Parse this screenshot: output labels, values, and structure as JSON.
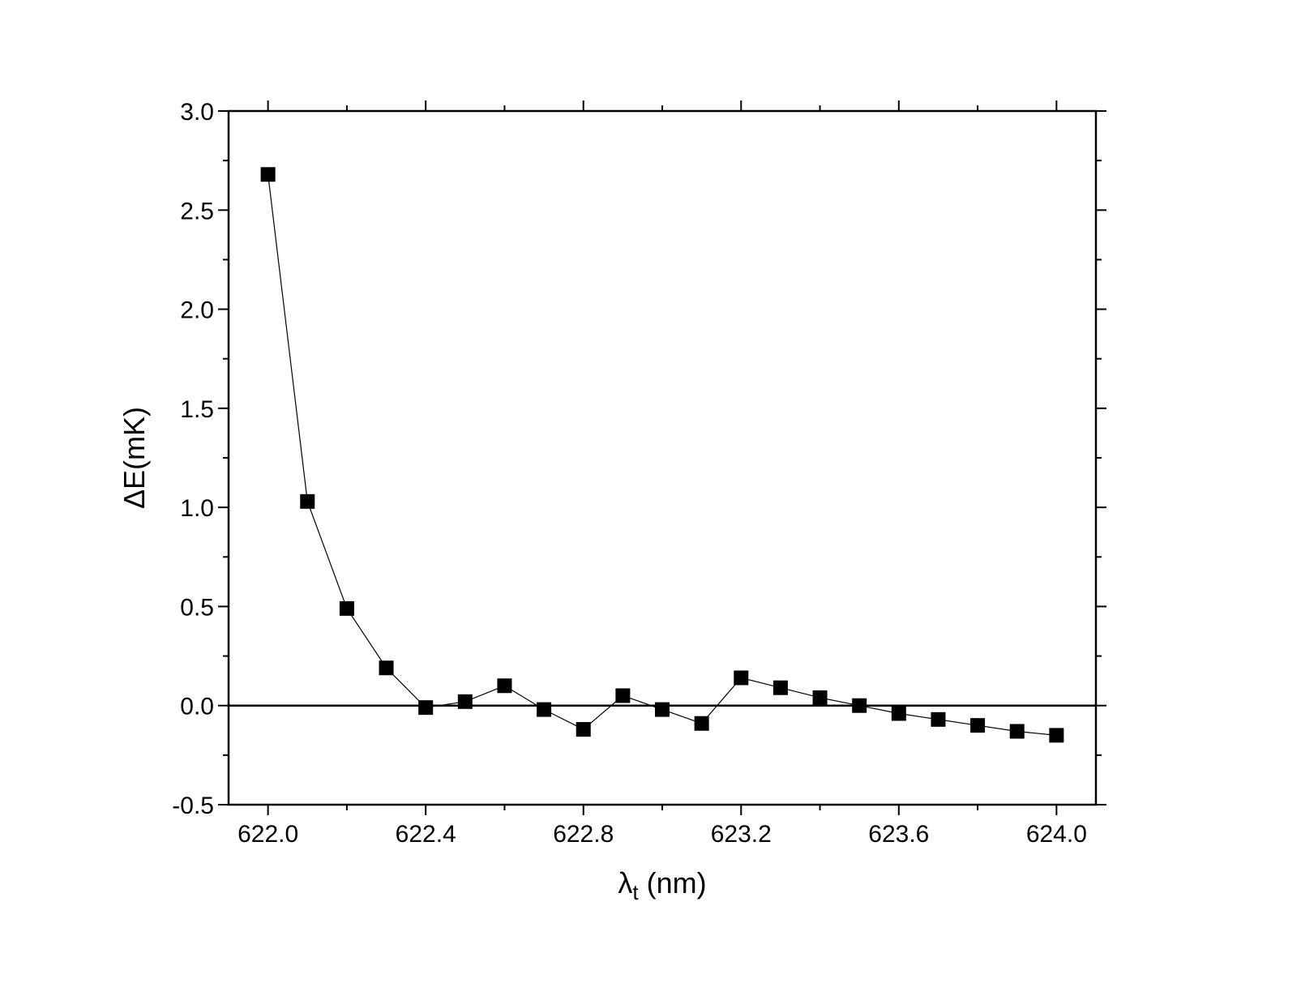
{
  "chart_data": {
    "type": "line",
    "title": "",
    "xlabel": "λt (nm)",
    "xlabel_main": "λ",
    "xlabel_sub": "t",
    "xlabel_rest": " (nm)",
    "ylabel": "ΔE(mK)",
    "xlim": [
      621.9,
      624.1
    ],
    "ylim": [
      -0.5,
      3.0
    ],
    "x_ticks": [
      "622.0",
      "622.4",
      "622.8",
      "623.2",
      "623.6",
      "624.0"
    ],
    "y_ticks": [
      "-0.5",
      "0.0",
      "0.5",
      "1.0",
      "1.5",
      "2.0",
      "2.5",
      "3.0"
    ],
    "reference_line_y": 0.0,
    "grid": false,
    "marker": "square",
    "color": "#000000",
    "series": [
      {
        "x": [
          622.0,
          622.1,
          622.2,
          622.3,
          622.4,
          622.5,
          622.6,
          622.7,
          622.8,
          622.9,
          623.0,
          623.1,
          623.2,
          623.3,
          623.4,
          623.5,
          623.6,
          623.7,
          623.8,
          623.9,
          624.0
        ],
        "values": [
          2.68,
          1.03,
          0.49,
          0.19,
          -0.01,
          0.02,
          0.1,
          -0.02,
          -0.12,
          0.05,
          -0.02,
          -0.09,
          0.14,
          0.09,
          0.04,
          0.0,
          -0.04,
          -0.07,
          -0.1,
          -0.13,
          -0.15
        ]
      }
    ]
  }
}
